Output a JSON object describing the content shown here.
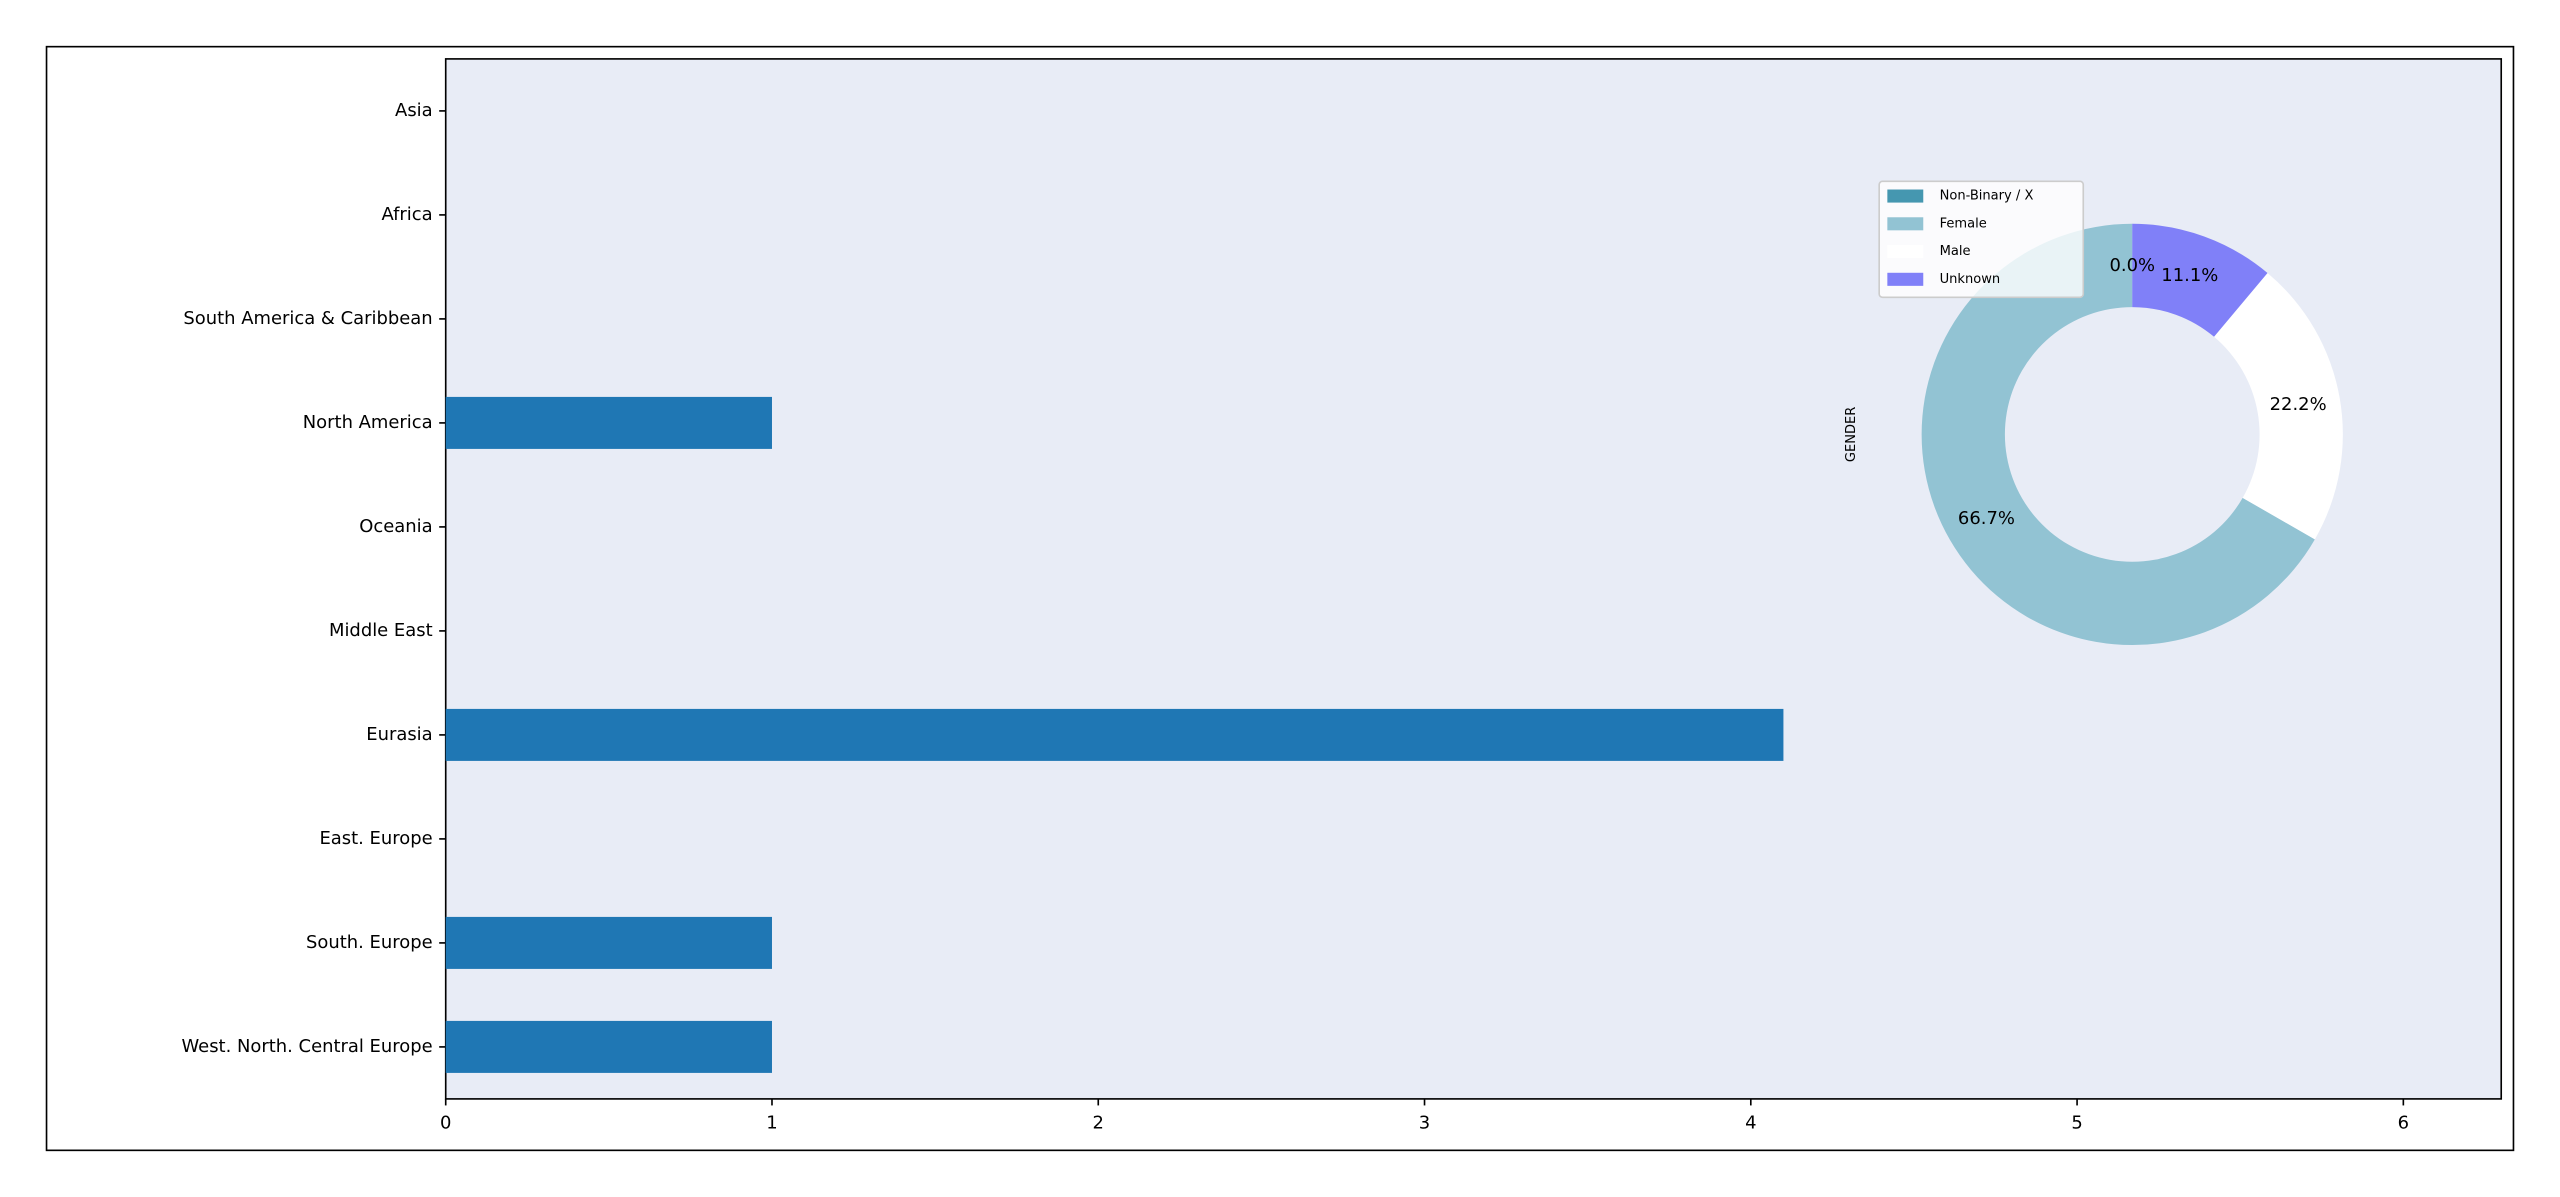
{
  "chart_data": [
    {
      "type": "barh",
      "categories": [
        "Asia",
        "Africa",
        "South America & Caribbean",
        "North America",
        "Oceania",
        "Middle East",
        "Eurasia",
        "East. Europe",
        "South. Europe",
        "West. North. Central Europe"
      ],
      "values": [
        0,
        0,
        0,
        1,
        0,
        0,
        4.1,
        0,
        1,
        1
      ],
      "color": "#1f77b4",
      "xlim": [
        0,
        6.3
      ],
      "xticks": [
        0,
        1,
        2,
        3,
        4,
        5,
        6
      ]
    },
    {
      "type": "pie",
      "ylabel": "GENDER",
      "categories": [
        "Non-Binary / X",
        "Female",
        "Male",
        "Unknown"
      ],
      "values": [
        0,
        66.7,
        22.2,
        11.1
      ],
      "value_labels": [
        "0.0%",
        "66.7%",
        "22.2%",
        "11.1%"
      ],
      "colors": [
        "#4597b0",
        "#92c3d3",
        "#ffffff",
        "#8080f8"
      ],
      "legend": "upper left"
    }
  ]
}
